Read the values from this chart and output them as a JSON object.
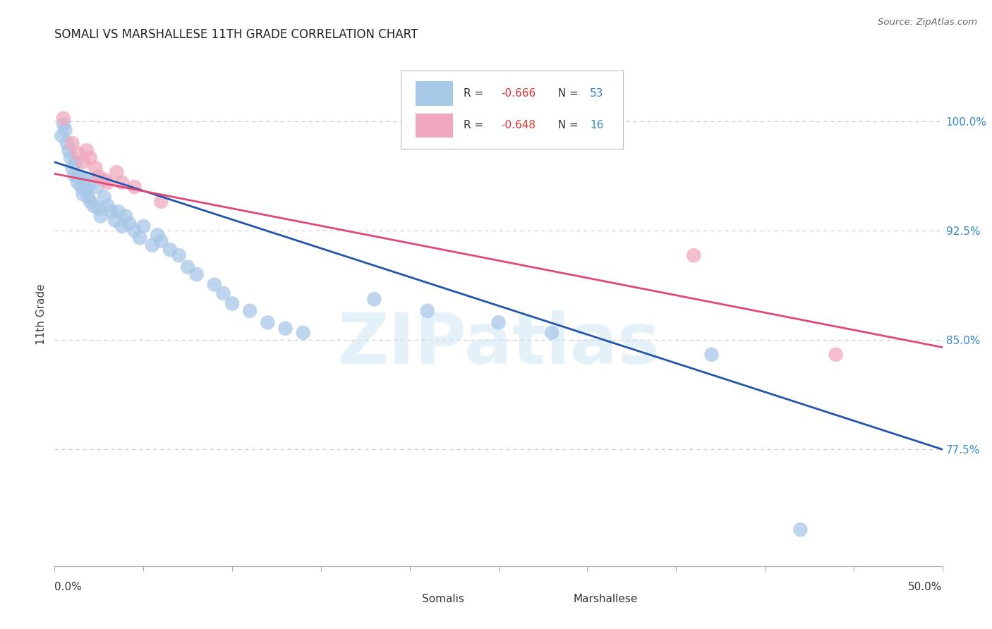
{
  "title": "SOMALI VS MARSHALLESE 11TH GRADE CORRELATION CHART",
  "source": "Source: ZipAtlas.com",
  "ylabel": "11th Grade",
  "xlim": [
    0.0,
    0.5
  ],
  "ylim": [
    0.695,
    1.04
  ],
  "x_ticks": [
    0.0,
    0.05,
    0.1,
    0.15,
    0.2,
    0.25,
    0.3,
    0.35,
    0.4,
    0.45,
    0.5
  ],
  "y_ticks": [
    0.775,
    0.85,
    0.925,
    1.0
  ],
  "y_tick_labels": [
    "77.5%",
    "85.0%",
    "92.5%",
    "100.0%"
  ],
  "somali_R": -0.666,
  "somali_N": 53,
  "marshallese_R": -0.648,
  "marshallese_N": 16,
  "somali_color": "#a8c8e8",
  "marshallese_color": "#f0a8be",
  "somali_line_color": "#2255aa",
  "marshallese_line_color": "#e04878",
  "legend_R_color": "#dd3333",
  "legend_N_color": "#3388cc",
  "somali_trendline_x0": 0.0,
  "somali_trendline_y0": 0.972,
  "somali_trendline_x1": 0.5,
  "somali_trendline_y1": 0.775,
  "marshallese_trendline_x0": 0.0,
  "marshallese_trendline_y0": 0.964,
  "marshallese_trendline_x1": 0.5,
  "marshallese_trendline_y1": 0.845,
  "somali_points": [
    [
      0.004,
      0.99
    ],
    [
      0.005,
      0.998
    ],
    [
      0.006,
      0.994
    ],
    [
      0.007,
      0.985
    ],
    [
      0.008,
      0.98
    ],
    [
      0.009,
      0.975
    ],
    [
      0.01,
      0.968
    ],
    [
      0.011,
      0.963
    ],
    [
      0.012,
      0.972
    ],
    [
      0.013,
      0.958
    ],
    [
      0.014,
      0.962
    ],
    [
      0.015,
      0.955
    ],
    [
      0.016,
      0.95
    ],
    [
      0.017,
      0.96
    ],
    [
      0.018,
      0.953
    ],
    [
      0.019,
      0.948
    ],
    [
      0.02,
      0.945
    ],
    [
      0.021,
      0.958
    ],
    [
      0.022,
      0.942
    ],
    [
      0.024,
      0.955
    ],
    [
      0.025,
      0.94
    ],
    [
      0.026,
      0.935
    ],
    [
      0.028,
      0.948
    ],
    [
      0.03,
      0.942
    ],
    [
      0.032,
      0.938
    ],
    [
      0.034,
      0.932
    ],
    [
      0.036,
      0.938
    ],
    [
      0.038,
      0.928
    ],
    [
      0.04,
      0.935
    ],
    [
      0.042,
      0.93
    ],
    [
      0.045,
      0.925
    ],
    [
      0.048,
      0.92
    ],
    [
      0.05,
      0.928
    ],
    [
      0.055,
      0.915
    ],
    [
      0.058,
      0.922
    ],
    [
      0.06,
      0.918
    ],
    [
      0.065,
      0.912
    ],
    [
      0.07,
      0.908
    ],
    [
      0.075,
      0.9
    ],
    [
      0.08,
      0.895
    ],
    [
      0.09,
      0.888
    ],
    [
      0.095,
      0.882
    ],
    [
      0.1,
      0.875
    ],
    [
      0.11,
      0.87
    ],
    [
      0.12,
      0.862
    ],
    [
      0.13,
      0.858
    ],
    [
      0.14,
      0.855
    ],
    [
      0.18,
      0.878
    ],
    [
      0.21,
      0.87
    ],
    [
      0.25,
      0.862
    ],
    [
      0.28,
      0.855
    ],
    [
      0.37,
      0.84
    ],
    [
      0.42,
      0.72
    ]
  ],
  "marshallese_points": [
    [
      0.005,
      1.002
    ],
    [
      0.01,
      0.985
    ],
    [
      0.013,
      0.978
    ],
    [
      0.016,
      0.972
    ],
    [
      0.018,
      0.98
    ],
    [
      0.02,
      0.975
    ],
    [
      0.023,
      0.968
    ],
    [
      0.025,
      0.962
    ],
    [
      0.028,
      0.96
    ],
    [
      0.03,
      0.958
    ],
    [
      0.035,
      0.965
    ],
    [
      0.038,
      0.958
    ],
    [
      0.045,
      0.955
    ],
    [
      0.06,
      0.945
    ],
    [
      0.36,
      0.908
    ],
    [
      0.44,
      0.84
    ]
  ],
  "watermark": "ZIPatlas",
  "background_color": "#ffffff",
  "grid_color": "#cccccc"
}
